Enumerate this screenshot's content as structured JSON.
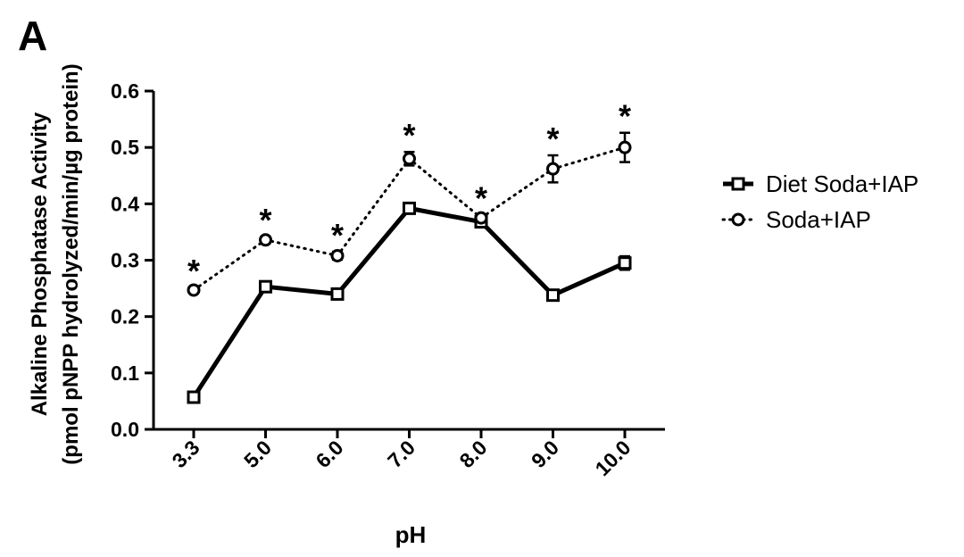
{
  "panel_label": "A",
  "chart_data": {
    "type": "line",
    "title": "",
    "xlabel": "pH",
    "ylabel_line1": "Alkaline Phosphatase Activity",
    "ylabel_line2": "(pmol pNPP hydrolyzed/min/µg protein)",
    "categories": [
      "3.3",
      "5.0",
      "6.0",
      "7.0",
      "8.0",
      "9.0",
      "10.0"
    ],
    "ylim": [
      0,
      0.6
    ],
    "yticks": [
      "0.0",
      "0.1",
      "0.2",
      "0.3",
      "0.4",
      "0.5",
      "0.6"
    ],
    "grid": false,
    "legend_position": "right",
    "series": [
      {
        "name": "Diet Soda+IAP",
        "line_style": "solid",
        "marker": "square",
        "color": "#000000",
        "values": [
          0.057,
          0.253,
          0.24,
          0.392,
          0.368,
          0.238,
          0.295
        ],
        "errors": [
          0.006,
          0.006,
          0.006,
          0.009,
          0.009,
          0.006,
          0.012
        ]
      },
      {
        "name": "Soda+IAP",
        "line_style": "dotted",
        "marker": "circle",
        "color": "#000000",
        "values": [
          0.247,
          0.336,
          0.308,
          0.48,
          0.375,
          0.462,
          0.5
        ],
        "errors": [
          0.005,
          0.006,
          0.007,
          0.012,
          0.006,
          0.024,
          0.026
        ]
      }
    ],
    "significance_marker": "*",
    "significance_indices": [
      0,
      1,
      2,
      3,
      4,
      5,
      6
    ]
  }
}
